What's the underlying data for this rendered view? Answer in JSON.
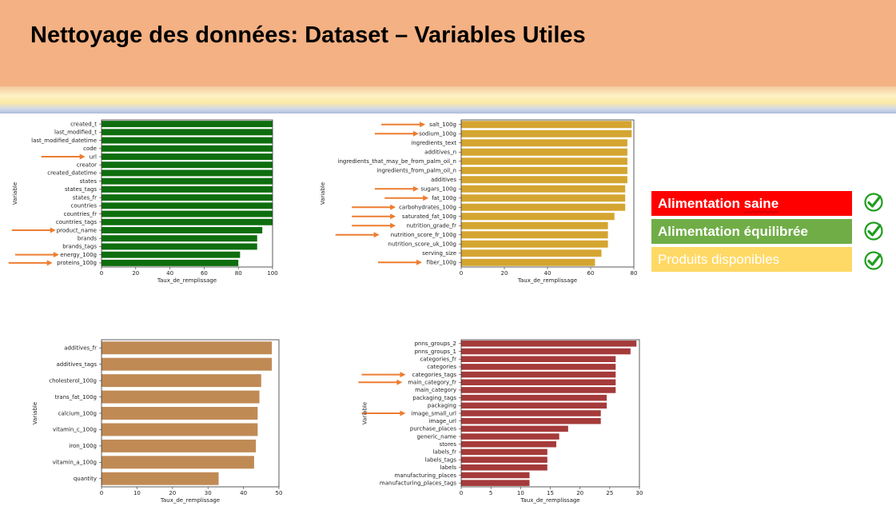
{
  "slide": {
    "title": "Nettoyage des données: Dataset – Variables Utiles"
  },
  "legend": {
    "items": [
      {
        "label_a": "Alimentation ",
        "label_b": "saine",
        "color": "#ff0000",
        "icon": "check-circle-icon"
      },
      {
        "label": "Alimentation équilibrée",
        "color": "#70ad47",
        "icon": "check-circle-icon"
      },
      {
        "label": "Produits disponibles",
        "color": "#ffd966",
        "icon": "check-circle-icon"
      }
    ]
  },
  "chart_data": [
    {
      "type": "bar",
      "orientation": "horizontal",
      "color": "#0e6e0e",
      "xlabel": "Taux_de_remplissage",
      "ylabel": "Variable",
      "xlim": [
        0,
        100
      ],
      "xticks": [
        0,
        20,
        40,
        60,
        80,
        100
      ],
      "categories": [
        "created_t",
        "last_modified_t",
        "last_modified_datetime",
        "code",
        "url",
        "creator",
        "created_datetime",
        "states",
        "states_tags",
        "states_fr",
        "countries",
        "countries_fr",
        "countries_tags",
        "product_name",
        "brands",
        "brands_tags",
        "energy_100g",
        "proteins_100g"
      ],
      "values": [
        100,
        100,
        100,
        100,
        100,
        100,
        100,
        100,
        100,
        100,
        100,
        100,
        100,
        94,
        91,
        91,
        81,
        80
      ],
      "arrows": [
        "url",
        "product_name",
        "energy_100g",
        "proteins_100g"
      ]
    },
    {
      "type": "bar",
      "orientation": "horizontal",
      "color": "#d4a530",
      "xlabel": "Taux_de_remplissage",
      "ylabel": "Variable",
      "xlim": [
        0,
        80
      ],
      "xticks": [
        0,
        20,
        40,
        60,
        80
      ],
      "categories": [
        "salt_100g",
        "sodium_100g",
        "ingredients_text",
        "additives_n",
        "ingredients_that_may_be_from_palm_oil_n",
        "ingredients_from_palm_oil_n",
        "additives",
        "sugars_100g",
        "fat_100g",
        "carbohydrates_100g",
        "saturated_fat_100g",
        "nutrition_grade_fr",
        "nutrition_score_fr_100g",
        "nutrition_score_uk_100g",
        "serving_size",
        "fiber_100g"
      ],
      "values": [
        79,
        79,
        77,
        77,
        77,
        77,
        77,
        76,
        76,
        76,
        71,
        68,
        68,
        68,
        65,
        62
      ],
      "arrows": [
        "salt_100g",
        "sodium_100g",
        "sugars_100g",
        "fat_100g",
        "carbohydrates_100g",
        "saturated_fat_100g",
        "nutrition_grade_fr",
        "nutrition_score_fr_100g",
        "fiber_100g"
      ]
    },
    {
      "type": "bar",
      "orientation": "horizontal",
      "color": "#c08a55",
      "xlabel": "Taux_de_remplissage",
      "ylabel": "Variable",
      "xlim": [
        0,
        50
      ],
      "xticks": [
        0,
        10,
        20,
        30,
        40,
        50
      ],
      "categories": [
        "additives_fr",
        "additives_tags",
        "cholesterol_100g",
        "trans_fat_100g",
        "calcium_100g",
        "vitamin_c_100g",
        "iron_100g",
        "vitamin_a_100g",
        "quantity"
      ],
      "values": [
        48,
        48,
        45,
        44.5,
        44,
        44,
        43.5,
        43,
        33
      ],
      "arrows": []
    },
    {
      "type": "bar",
      "orientation": "horizontal",
      "color": "#a53a3a",
      "xlabel": "Taux_de_remplissage",
      "ylabel": "Variable",
      "xlim": [
        0,
        30
      ],
      "xticks": [
        0,
        5,
        10,
        15,
        20,
        25,
        30
      ],
      "categories": [
        "pnns_groups_2",
        "pnns_groups_1",
        "categories_fr",
        "categories",
        "categories_tags",
        "main_category_fr",
        "main_category",
        "packaging_tags",
        "packaging",
        "image_small_url",
        "image_url",
        "purchase_places",
        "generic_name",
        "stores",
        "labels_fr",
        "labels_tags",
        "labels",
        "manufacturing_places",
        "manufacturing_places_tags"
      ],
      "values": [
        29.5,
        28.5,
        26,
        26,
        26,
        26,
        26,
        24.5,
        24.5,
        23.5,
        23.5,
        18,
        16.5,
        16,
        14.5,
        14.5,
        14.5,
        11.5,
        11.5
      ],
      "arrows": [
        "categories_tags",
        "main_category_fr",
        "image_small_url"
      ]
    }
  ]
}
